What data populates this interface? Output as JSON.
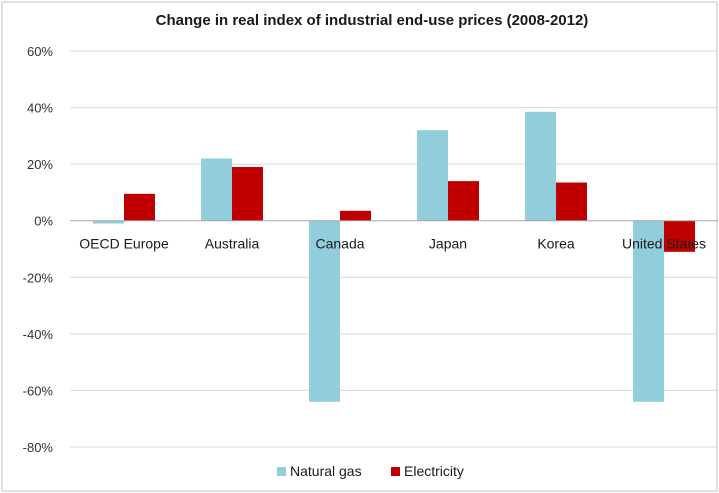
{
  "chart_data": {
    "type": "bar",
    "title": "Change in real index of industrial end-use prices (2008-2012)",
    "xlabel": "",
    "ylabel": "",
    "categories": [
      "OECD Europe",
      "Australia",
      "Canada",
      "Japan",
      "Korea",
      "United States"
    ],
    "series": [
      {
        "name": "Natural gas",
        "color": "#92cddc",
        "values": [
          -1,
          22,
          -64,
          32,
          38.5,
          -64
        ]
      },
      {
        "name": "Electricity",
        "color": "#c00000",
        "values": [
          9.5,
          19,
          3.5,
          14,
          13.5,
          -11
        ]
      }
    ],
    "ylim": [
      -80,
      60
    ],
    "yticks": [
      60,
      40,
      20,
      0,
      -20,
      -40,
      -60,
      -80
    ],
    "ytick_labels": [
      "60%",
      "40%",
      "20%",
      "0%",
      "-20%",
      "-40%",
      "-60%",
      "-80%"
    ],
    "grid": true,
    "legend_position": "bottom"
  }
}
